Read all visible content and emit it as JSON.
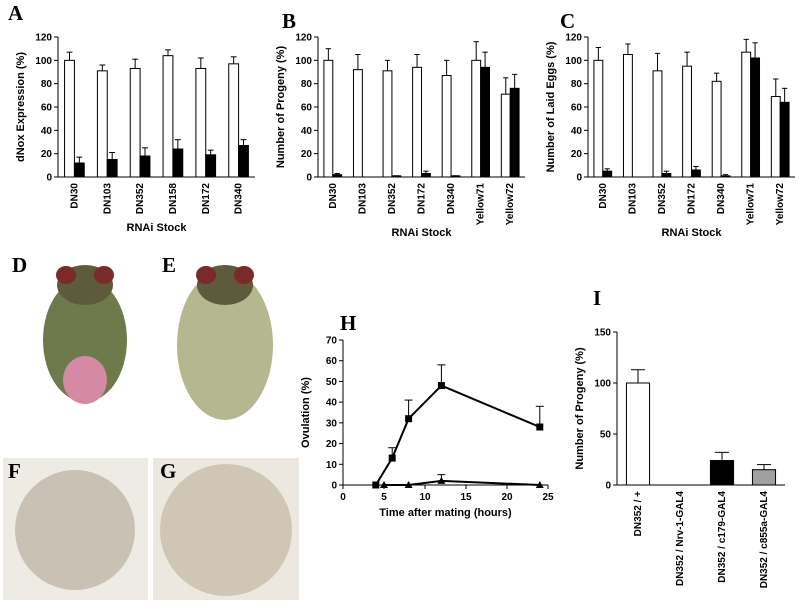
{
  "chart_data": [
    {
      "type": "bar",
      "panel_label": "A",
      "y_label": "dNox Expression (%)",
      "x_label": "RNAi Stock",
      "categories": [
        "DN30",
        "DN103",
        "DN352",
        "DN158",
        "DN172",
        "DN340"
      ],
      "series": [
        {
          "color": "#ffffff",
          "values": [
            100,
            91,
            93,
            104,
            93,
            97
          ],
          "errors": [
            7,
            5,
            8,
            5,
            9,
            6
          ]
        },
        {
          "color": "#000000",
          "values": [
            12,
            15,
            18,
            24,
            19,
            27
          ],
          "errors": [
            5,
            6,
            7,
            8,
            4,
            5
          ]
        }
      ],
      "ylim": [
        0,
        120
      ],
      "yticks": [
        0,
        20,
        40,
        60,
        80,
        100,
        120
      ]
    },
    {
      "type": "bar",
      "panel_label": "B",
      "y_label": "Number of Progeny (%)",
      "x_label": "RNAi Stock",
      "categories": [
        "DN30",
        "DN103",
        "DN352",
        "DN172",
        "DN340",
        "Yellow71",
        "Yellow72"
      ],
      "series": [
        {
          "color": "#ffffff",
          "values": [
            100,
            92,
            91,
            94,
            87,
            100,
            71
          ],
          "errors": [
            10,
            13,
            9,
            11,
            13,
            16,
            14
          ]
        },
        {
          "color": "#000000",
          "values": [
            2,
            0,
            1,
            3,
            1,
            94,
            76
          ],
          "errors": [
            1,
            0,
            0,
            2,
            0,
            13,
            12
          ]
        }
      ],
      "ylim": [
        0,
        120
      ],
      "yticks": [
        0,
        20,
        40,
        60,
        80,
        100,
        120
      ]
    },
    {
      "type": "bar",
      "panel_label": "C",
      "y_label": "Number of Laid Eggs (%)",
      "x_label": "RNAi Stock",
      "categories": [
        "DN30",
        "DN103",
        "DN352",
        "DN172",
        "DN340",
        "Yellow71",
        "Yellow72"
      ],
      "series": [
        {
          "color": "#ffffff",
          "values": [
            100,
            105,
            91,
            95,
            82,
            107,
            69
          ],
          "errors": [
            11,
            9,
            15,
            12,
            7,
            11,
            15
          ]
        },
        {
          "color": "#000000",
          "values": [
            5,
            0,
            3,
            6,
            1,
            102,
            64
          ],
          "errors": [
            2,
            0,
            2,
            3,
            1,
            13,
            12
          ]
        }
      ],
      "ylim": [
        0,
        120
      ],
      "yticks": [
        0,
        20,
        40,
        60,
        80,
        100,
        120
      ]
    },
    {
      "type": "line",
      "panel_label": "H",
      "y_label": "Ovulation (%)",
      "x_label": "Time after mating (hours)",
      "series": [
        {
          "color": "#000000",
          "marker": "square",
          "x": [
            4,
            6,
            8,
            12,
            24
          ],
          "values": [
            0,
            13,
            32,
            48,
            28
          ],
          "errors": [
            0,
            5,
            9,
            10,
            10
          ]
        },
        {
          "color": "#000000",
          "marker": "triangle",
          "x": [
            5,
            8,
            12,
            24
          ],
          "values": [
            0,
            0,
            2,
            0
          ],
          "errors": [
            0,
            0,
            3,
            0
          ]
        }
      ],
      "xlim": [
        0,
        25
      ],
      "xticks": [
        0,
        5,
        10,
        15,
        20,
        25
      ],
      "ylim": [
        0,
        70
      ],
      "yticks": [
        0,
        10,
        20,
        30,
        40,
        50,
        60,
        70
      ]
    },
    {
      "type": "bar",
      "panel_label": "I",
      "y_label": "Number of Progeny (%)",
      "categories": [
        "DN352 / +",
        "DN352 / Nrv-1-GAL4",
        "DN352 / c179-GAL4",
        "DN352 / c855a-GAL4"
      ],
      "series": [
        {
          "colors": [
            "#ffffff",
            "#ffffff",
            "#000000",
            "#a0a0a0"
          ],
          "values": [
            100,
            0,
            24,
            15
          ],
          "errors": [
            13,
            0,
            8,
            5
          ]
        }
      ],
      "ylim": [
        0,
        150
      ],
      "yticks": [
        0,
        50,
        100,
        150
      ]
    }
  ],
  "images": [
    {
      "label": "D"
    },
    {
      "label": "E"
    },
    {
      "label": "F"
    },
    {
      "label": "G"
    }
  ]
}
